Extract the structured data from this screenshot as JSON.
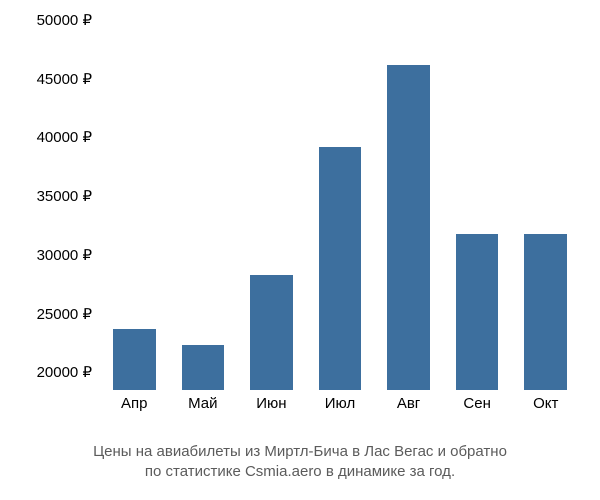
{
  "chart": {
    "type": "bar",
    "categories": [
      "Апр",
      "Май",
      "Июн",
      "Июл",
      "Авг",
      "Сен",
      "Окт"
    ],
    "values": [
      23700,
      22300,
      28300,
      39200,
      46200,
      31800,
      31800
    ],
    "bar_color": "#3d6f9e",
    "bar_width_ratio": 0.62,
    "y_axis": {
      "min": 18500,
      "max": 50000,
      "ticks": [
        20000,
        25000,
        30000,
        35000,
        40000,
        45000,
        50000
      ],
      "tick_labels": [
        "20000 ₽",
        "25000 ₽",
        "30000 ₽",
        "35000 ₽",
        "40000 ₽",
        "45000 ₽",
        "50000 ₽"
      ],
      "label_color": "#000000",
      "label_fontsize": 15
    },
    "x_axis": {
      "label_color": "#000000",
      "label_fontsize": 15
    },
    "background_color": "#ffffff"
  },
  "caption": {
    "line1": "Цены на авиабилеты из Миртл-Бича в Лас Вегас и обратно",
    "line2": "по статистике Csmia.aero в динамике за год.",
    "color": "#5b5b5b",
    "fontsize": 15
  }
}
